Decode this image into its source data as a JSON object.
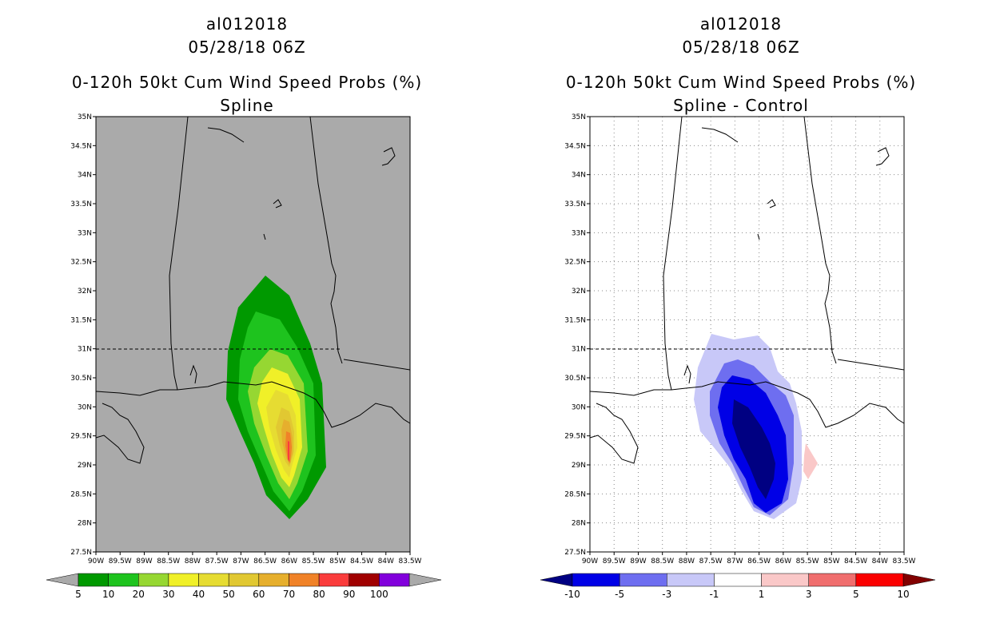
{
  "panels": [
    {
      "storm": "al012018",
      "datetime": "05/28/18 06Z",
      "title": "0-120h 50kt Cum Wind Speed Probs (%)",
      "subtitle": "Spline",
      "colorbar": {
        "labels": [
          "5",
          "10",
          "20",
          "30",
          "40",
          "50",
          "60",
          "70",
          "80",
          "90",
          "100"
        ],
        "colors": [
          "#009900",
          "#1ec31e",
          "#96d732",
          "#f0f028",
          "#e6dc32",
          "#e1c832",
          "#e6af2d",
          "#f08228",
          "#fa3c3c",
          "#a00000",
          "#8200dc"
        ],
        "end_color_low": "#aaaaaa",
        "end_color_high": "#aaaaaa"
      }
    },
    {
      "storm": "al012018",
      "datetime": "05/28/18 06Z",
      "title": "0-120h 50kt Cum Wind Speed Probs (%)",
      "subtitle": "Spline - Control",
      "colorbar": {
        "labels": [
          "-10",
          "-5",
          "-3",
          "-1",
          "1",
          "3",
          "5",
          "10"
        ],
        "colors": [
          "#0000e6",
          "#6e6ef0",
          "#c8c8f8",
          "#ffffff",
          "#fac8c8",
          "#f06e6e",
          "#fa0000"
        ],
        "end_color_low": "#000082",
        "end_color_high": "#820000"
      }
    }
  ],
  "axes": {
    "lat_labels": [
      "35N",
      "34.5N",
      "34N",
      "33.5N",
      "33N",
      "32.5N",
      "32N",
      "31.5N",
      "31N",
      "30.5N",
      "30N",
      "29.5N",
      "29N",
      "28.5N",
      "28N",
      "27.5N"
    ],
    "lon_labels": [
      "90W",
      "89.5W",
      "89W",
      "88.5W",
      "88W",
      "87.5W",
      "87W",
      "86.5W",
      "86W",
      "85.5W",
      "85W",
      "84.5W",
      "84W",
      "83.5W"
    ]
  },
  "map_colors": {
    "left_background": "#aaaaaa",
    "right_background": "#ffffff",
    "coast": "#000000"
  }
}
